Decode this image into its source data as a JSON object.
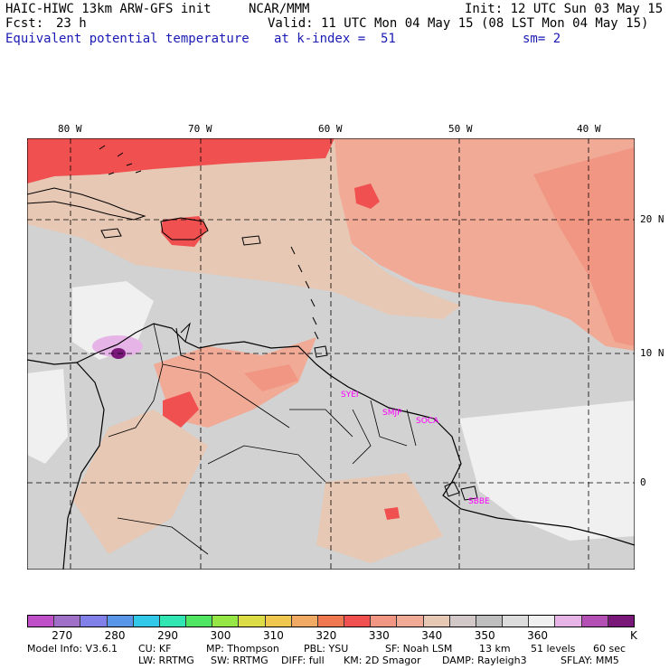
{
  "header": {
    "model": "HAIC-HIWC 13km ARW-GFS init",
    "center": "NCAR/MMM",
    "init": "Init: 12 UTC Sun 03 May 15",
    "fcst_label": "Fcst:",
    "fcst_value": "23 h",
    "valid": "Valid: 11 UTC Mon 04 May 15 (08 LST Mon 04 May 15)",
    "field": "Equivalent potential temperature",
    "level": "at k-index =  51",
    "smooth": "sm= 2"
  },
  "axes": {
    "lon_labels": [
      "80 W",
      "70 W",
      "60 W",
      "50 W",
      "40 W"
    ],
    "lat_labels": [
      "20 N",
      "10 N",
      "0"
    ]
  },
  "stations": [
    "SYEI",
    "SMJP",
    "SOCA",
    "SBBE"
  ],
  "colorbar": {
    "colors": [
      "#c050c8",
      "#a070c8",
      "#8080e8",
      "#5a96e8",
      "#32c8e8",
      "#32e6b4",
      "#50e664",
      "#96e646",
      "#dcdc46",
      "#f0c850",
      "#f0aa64",
      "#f07850",
      "#f05050",
      "#f09682",
      "#f0aa96",
      "#e6c8b4",
      "#d2c8c8",
      "#bebebe",
      "#dcdcdc",
      "#f0f0f0",
      "#e6b4e6",
      "#b450b4",
      "#7a187a"
    ],
    "labels": [
      "270",
      "280",
      "290",
      "300",
      "310",
      "320",
      "330",
      "340",
      "350",
      "360"
    ],
    "unit": "K"
  },
  "map_colors": {
    "red": "#f05050",
    "salmon": "#f09682",
    "peach": "#f0aa96",
    "tan": "#e6c8b4",
    "gray": "#d2d2d2",
    "lightgray": "#f0f0f0",
    "lavender": "#e6b4e6",
    "purple": "#7a187a"
  },
  "footer": {
    "line1": [
      "Model Info: V3.6.1",
      "CU: KF",
      "MP: Thompson",
      "PBL: YSU",
      "SF: Noah LSM",
      "13 km",
      "51 levels",
      "60 sec"
    ],
    "line2": [
      "LW: RRTMG",
      "SW: RRTMG",
      "DIFF: full",
      "KM: 2D Smagor",
      "DAMP: Rayleigh3",
      "SFLAY: MM5"
    ]
  }
}
